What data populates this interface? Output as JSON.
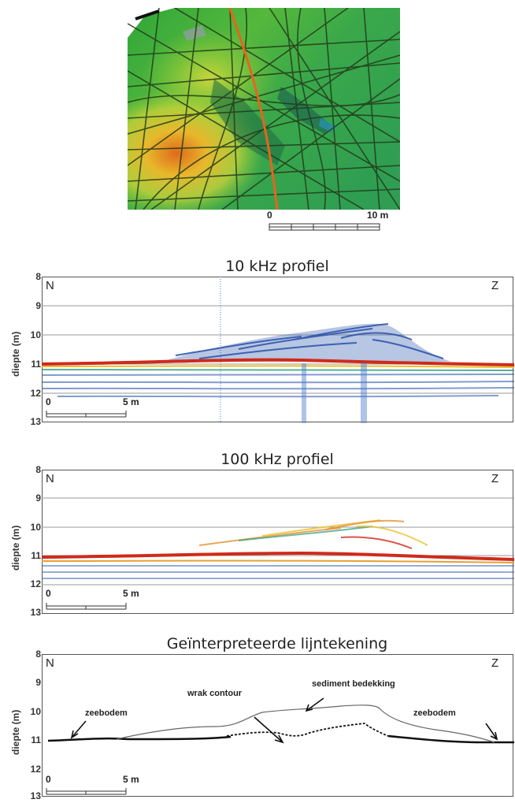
{
  "map": {
    "scale": {
      "start": "0",
      "end": "10 m"
    },
    "colors": {
      "track": "#223b1a",
      "route": "#e8641c"
    }
  },
  "panels": [
    {
      "title": "10 kHz profiel",
      "north": "N",
      "south": "Z",
      "ylabel": "diepte (m)",
      "yticks": [
        "8",
        "9",
        "10",
        "11",
        "12",
        "13"
      ],
      "scale": {
        "start": "0",
        "end": "5 m"
      }
    },
    {
      "title": "100 kHz profiel",
      "north": "N",
      "south": "Z",
      "ylabel": "diepte (m)",
      "yticks": [
        "8",
        "9",
        "10",
        "11",
        "12",
        "13"
      ],
      "scale": {
        "start": "0",
        "end": "5 m"
      }
    },
    {
      "title": "Geïnterpreteerde lijntekening",
      "north": "N",
      "south": "Z",
      "ylabel": "diepte (m)",
      "yticks": [
        "8",
        "9",
        "10",
        "11",
        "12",
        "13"
      ],
      "scale": {
        "start": "0",
        "end": "5 m"
      },
      "annotations": {
        "seabed_left": "zeebodem",
        "wreck": "wrak contour",
        "sediment": "sediment bedekking",
        "seabed_right": "zeebodem"
      }
    }
  ]
}
